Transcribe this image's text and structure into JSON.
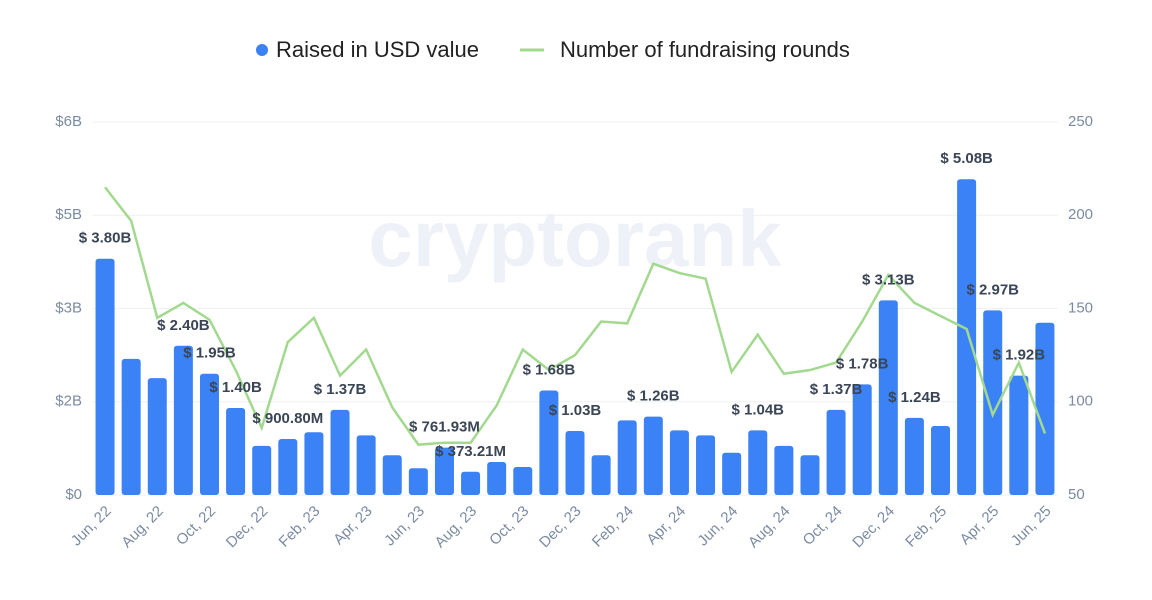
{
  "chart_data": {
    "type": "bar-line",
    "watermark": "cryptorank",
    "categories": [
      "Jun, 22",
      null,
      "Aug, 22",
      null,
      "Oct, 22",
      null,
      "Dec, 22",
      null,
      "Feb, 23",
      null,
      "Apr, 23",
      null,
      "Jun, 23",
      null,
      "Aug, 23",
      null,
      "Oct, 23",
      null,
      "Dec, 23",
      null,
      "Feb, 24",
      null,
      "Apr, 24",
      null,
      "Jun, 24",
      null,
      "Aug, 24",
      null,
      "Oct, 24",
      null,
      "Dec, 24",
      null,
      "Feb, 25",
      null,
      "Apr, 25",
      null,
      "Jun, 25"
    ],
    "series": [
      {
        "name": "Raised in USD value",
        "color": "#3b82f6",
        "kind": "bar",
        "values": [
          3.8,
          2.19,
          1.88,
          2.4,
          1.95,
          1.4,
          0.79,
          0.9008,
          1.01,
          1.37,
          0.96,
          0.64,
          0.43,
          0.76193,
          0.37321,
          0.53,
          0.45,
          1.68,
          1.03,
          0.64,
          1.2,
          1.26,
          1.04,
          0.96,
          0.68,
          1.04,
          0.79,
          0.64,
          1.37,
          1.78,
          3.13,
          1.24,
          1.11,
          5.08,
          2.97,
          1.92,
          2.77
        ],
        "value_labels": [
          "$ 3.80B",
          null,
          null,
          "$ 2.40B",
          "$ 1.95B",
          "$ 1.40B",
          null,
          "$ 900.80M",
          null,
          "$ 1.37B",
          null,
          null,
          null,
          "$ 761.93M",
          "$ 373.21M",
          null,
          null,
          "$ 1.68B",
          "$ 1.03B",
          null,
          null,
          "$ 1.26B",
          null,
          null,
          null,
          "$ 1.04B",
          null,
          null,
          "$ 1.37B",
          "$ 1.78B",
          "$ 3.13B",
          "$ 1.24B",
          null,
          "$ 5.08B",
          "$ 2.97B",
          "$ 1.92B",
          null
        ]
      },
      {
        "name": "Number of fundraising rounds",
        "color": "#a3d98f",
        "kind": "line",
        "axis": "y2",
        "values": [
          215,
          197,
          145,
          153,
          144,
          117,
          86,
          132,
          145,
          114,
          128,
          97,
          77,
          78,
          78,
          98,
          128,
          117,
          125,
          143,
          142,
          174,
          169,
          166,
          116,
          136,
          115,
          117,
          121,
          143,
          168,
          153,
          146,
          139,
          93,
          121,
          83
        ]
      }
    ],
    "ylim": [
      0,
      6
    ],
    "yticks": [
      {
        "value": 0,
        "label": "$0"
      },
      {
        "value": 1.5,
        "label": "$2B"
      },
      {
        "value": 3,
        "label": "$3B"
      },
      {
        "value": 4.5,
        "label": "$5B"
      },
      {
        "value": 6,
        "label": "$6B"
      }
    ],
    "y2lim": [
      50,
      250
    ],
    "y2ticks": [
      50,
      100,
      150,
      200,
      250
    ],
    "grid": true,
    "legend": "top"
  }
}
